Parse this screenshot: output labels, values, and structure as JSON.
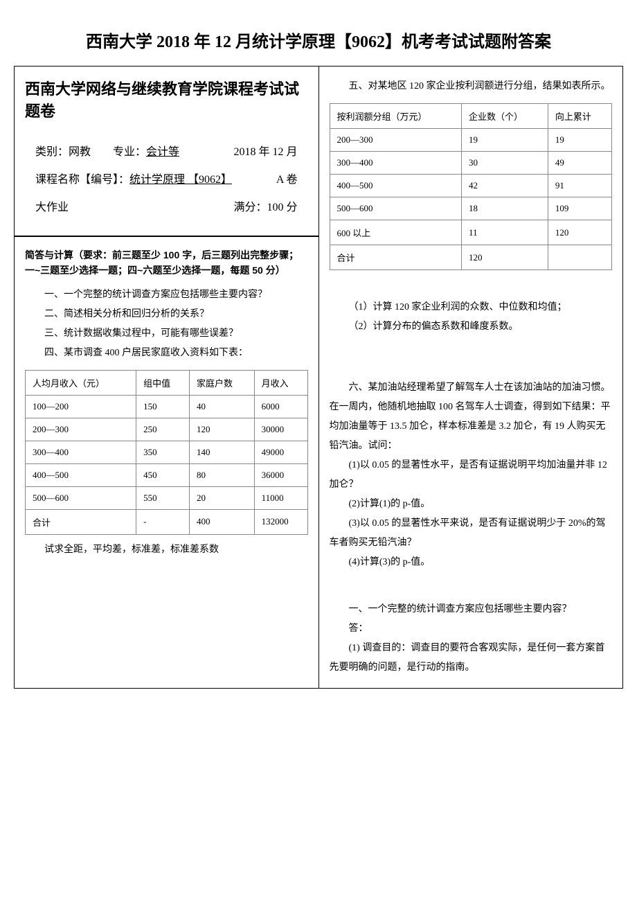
{
  "main_title": "西南大学 2018 年 12 月统计学原理【9062】机考考试试题附答案",
  "left": {
    "header_title": "西南大学网络与继续教育学院课程考试试题卷",
    "info": {
      "category_label": "类别：",
      "category_value": "网教",
      "major_label": "专业：",
      "major_value": "会计等",
      "date": "2018 年 12 月",
      "course_label": "课程名称【编号】：",
      "course_value": "统计学原理 【9062】",
      "volume": "A 卷",
      "assignment": "大作业",
      "full_mark": "满分：100 分"
    },
    "instruction": "简答与计算（要求：前三题至少 100 字，后三题列出完整步骤；一~三题至少选择一题；四~六题至少选择一题，每题 50 分）",
    "q1": "一、一个完整的统计调查方案应包括哪些主要内容？",
    "q2": "二、简述相关分析和回归分析的关系？",
    "q3": "三、统计数据收集过程中，可能有哪些误差？",
    "q4_intro": "四、某市调查 400 户居民家庭收入资料如下表：",
    "table4": {
      "headers": [
        "人均月收入（元）",
        "组中值",
        "家庭户数",
        "月收入"
      ],
      "rows": [
        [
          "100—200",
          "150",
          "40",
          "6000"
        ],
        [
          "200—300",
          "250",
          "120",
          "30000"
        ],
        [
          "300—400",
          "350",
          "140",
          "49000"
        ],
        [
          "400—500",
          "450",
          "80",
          "36000"
        ],
        [
          "500—600",
          "550",
          "20",
          "11000"
        ],
        [
          "合计",
          "-",
          "400",
          "132000"
        ]
      ]
    },
    "q4_note": "试求全距，平均差，标准差，标准差系数"
  },
  "right": {
    "q5_intro": "五、对某地区 120 家企业按利润额进行分组，结果如表所示。",
    "table5": {
      "headers": [
        "按利润额分组（万元）",
        "企业数（个）",
        "向上累计"
      ],
      "rows": [
        [
          "200—300",
          "19",
          "19"
        ],
        [
          "300—400",
          "30",
          "49"
        ],
        [
          "400—500",
          "42",
          "91"
        ],
        [
          "500—600",
          "18",
          "109"
        ],
        [
          "600 以上",
          "11",
          "120"
        ],
        [
          "合计",
          "120",
          ""
        ]
      ]
    },
    "q5_sub1": "（1）计算 120 家企业利润的众数、中位数和均值；",
    "q5_sub2": "（2）计算分布的偏态系数和峰度系数。",
    "q6_intro": "六、某加油站经理希望了解驾车人士在该加油站的加油习惯。在一周内，他随机地抽取 100 名驾车人士调查，得到如下结果：平均加油量等于 13.5 加仑，样本标准差是 3.2 加仑，有 19 人购买无铅汽油。试问：",
    "q6_sub1": "(1)以 0.05 的显著性水平，是否有证据说明平均加油量并非 12 加仑？",
    "q6_sub2": "(2)计算(1)的 p-值。",
    "q6_sub3": "(3)以 0.05 的显著性水平来说，是否有证据说明少于 20%的驾车者购买无铅汽油？",
    "q6_sub4": "(4)计算(3)的 p-值。",
    "answer_q1": "一、一个完整的统计调查方案应包括哪些主要内容？",
    "answer_label": "答：",
    "answer_q1_1": "(1) 调查目的：调查目的要符合客观实际，是任何一套方案首先要明确的问题，是行动的指南。"
  }
}
